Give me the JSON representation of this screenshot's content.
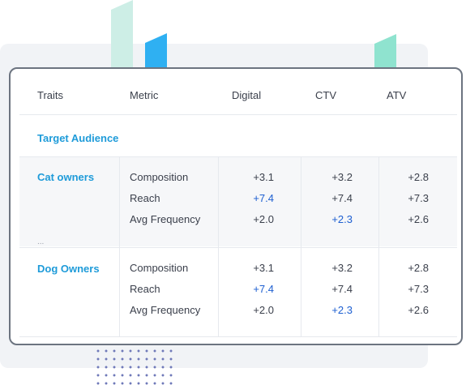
{
  "table": {
    "headers": [
      "Traits",
      "Metric",
      "Digital",
      "CTV",
      "ATV"
    ],
    "section_label": "Target  Audience",
    "groups": [
      {
        "name": "Cat owners",
        "rows": [
          {
            "metric": "Composition",
            "digital": "+3.1",
            "ctv": "+3.2",
            "atv": "+2.8"
          },
          {
            "metric": "Reach",
            "digital": "+7.4",
            "ctv": "+7.4",
            "atv": "+7.3"
          },
          {
            "metric": "Avg Frequency",
            "digital": "+2.0",
            "ctv": "+2.3",
            "atv": "+2.6"
          }
        ]
      },
      {
        "name": "Dog Owners",
        "rows": [
          {
            "metric": "Composition",
            "digital": "+3.1",
            "ctv": "+3.2",
            "atv": "+2.8"
          },
          {
            "metric": "Reach",
            "digital": "+7.4",
            "ctv": "+7.4",
            "atv": "+7.3"
          },
          {
            "metric": "Avg Frequency",
            "digital": "+2.0",
            "ctv": "+2.3",
            "atv": "+2.6"
          }
        ]
      }
    ],
    "ellipsis": "..."
  },
  "colors": {
    "accent_link": "#1e9bd9",
    "highlight_value": "#1d5fd1",
    "card_border": "#6c7480"
  }
}
